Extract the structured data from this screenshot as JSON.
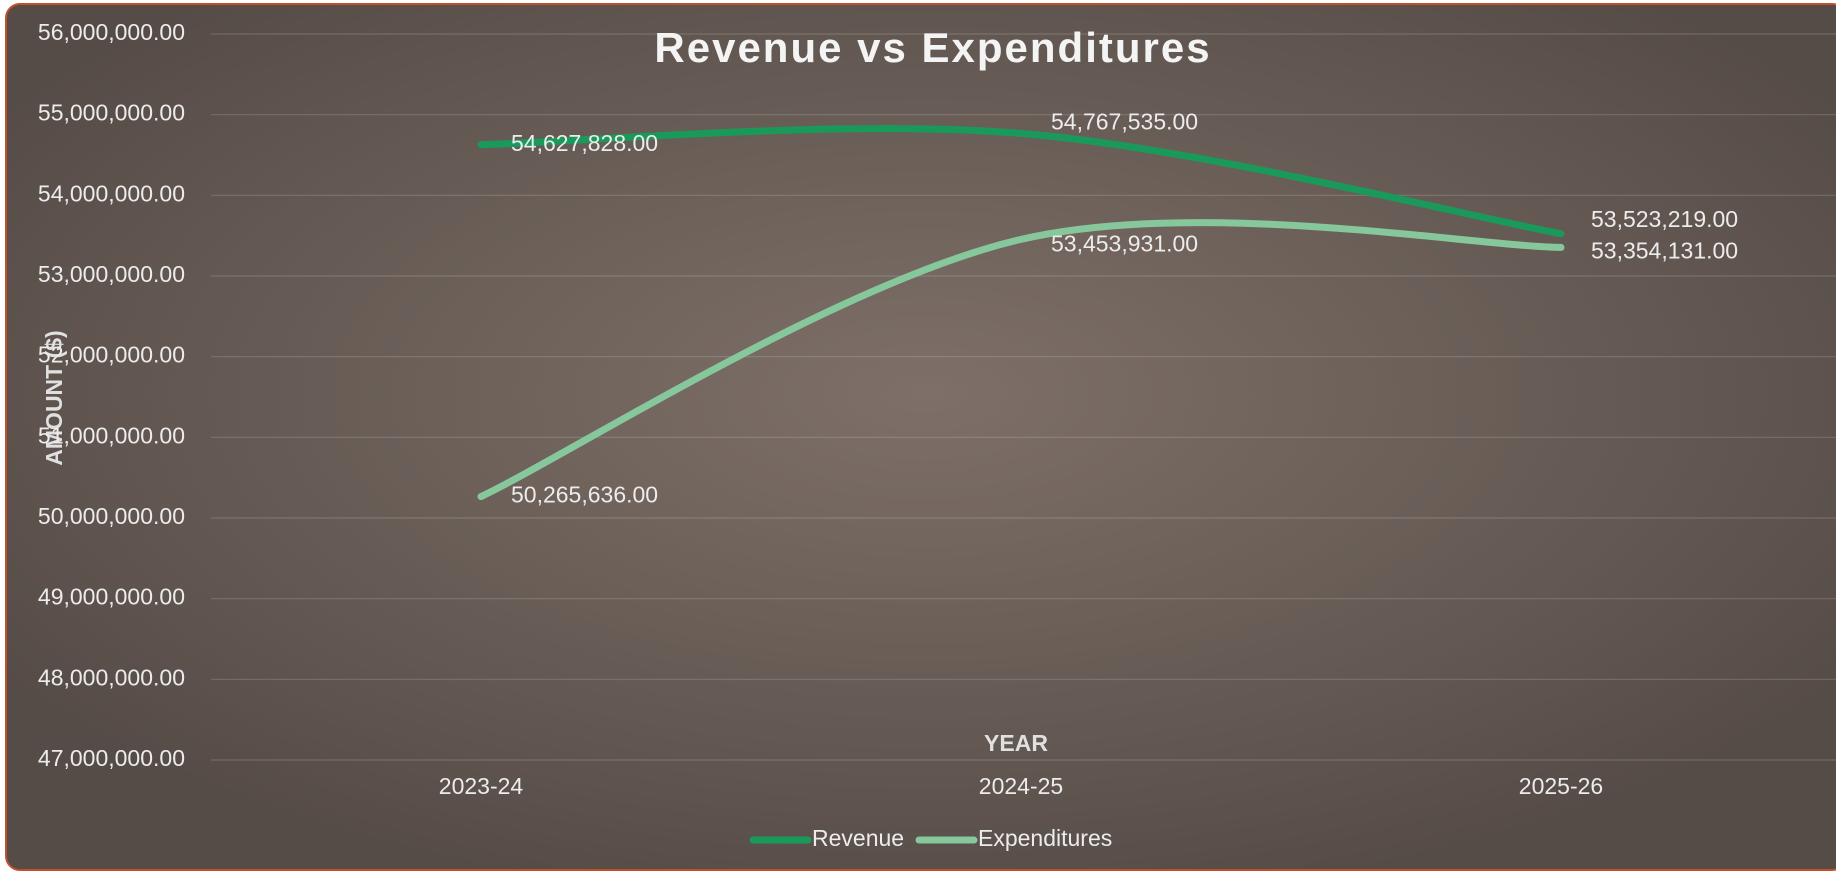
{
  "chart_data": {
    "type": "line",
    "title": "Revenue vs Expenditures",
    "x_label": "YEAR",
    "y_label": "AMOUNT ($)",
    "categories": [
      "2023-24",
      "2024-25",
      "2025-26"
    ],
    "series": [
      {
        "name": "Revenue",
        "color": "#1a9a5a",
        "values": [
          54627828,
          54767535,
          53523219
        ],
        "value_labels": [
          "54,627,828.00",
          "54,767,535.00",
          "53,523,219.00"
        ]
      },
      {
        "name": "Expenditures",
        "color": "#86c79c",
        "values": [
          50265636,
          53453931,
          53354131
        ],
        "value_labels": [
          "50,265,636.00",
          "53,453,931.00",
          "53,354,131.00"
        ]
      }
    ],
    "ylim": [
      47000000,
      56000000
    ],
    "yticks": [
      {
        "value": 47000000,
        "label": "47,000,000.00"
      },
      {
        "value": 48000000,
        "label": "48,000,000.00"
      },
      {
        "value": 49000000,
        "label": "49,000,000.00"
      },
      {
        "value": 50000000,
        "label": "50,000,000.00"
      },
      {
        "value": 51000000,
        "label": "51,000,000.00"
      },
      {
        "value": 52000000,
        "label": "52,000,000.00"
      },
      {
        "value": 53000000,
        "label": "53,000,000.00"
      },
      {
        "value": 54000000,
        "label": "54,000,000.00"
      },
      {
        "value": 55000000,
        "label": "55,000,000.00"
      },
      {
        "value": 56000000,
        "label": "56,000,000.00"
      }
    ],
    "grid": true,
    "smooth": true,
    "legend": "bottom"
  }
}
